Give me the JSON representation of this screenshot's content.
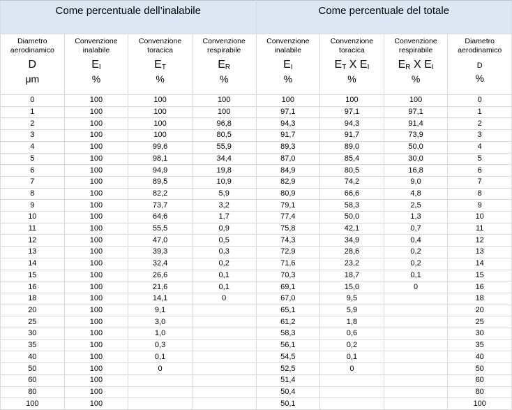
{
  "colors": {
    "band_background": "#dce7f3",
    "grid_line": "#d9d9d9",
    "outer_border": "#bcc2c9",
    "text": "#000000"
  },
  "table": {
    "section_headers": [
      "Come percentuale dell’inalabile",
      "Come percentuale del totale"
    ],
    "columns": [
      {
        "name": "Diametro aerodinamico",
        "symbol": "D",
        "symbol_size": "large",
        "unit": "μm"
      },
      {
        "name": "Convenzione inalabile",
        "symbol": "E_I",
        "symbol_size": "large",
        "unit": "%"
      },
      {
        "name": "Convenzione toracica",
        "symbol": "E_T",
        "symbol_size": "large",
        "unit": "%"
      },
      {
        "name": "Convenzione respirabile",
        "symbol": "E_R",
        "symbol_size": "large",
        "unit": "%"
      },
      {
        "name": "Convenzione inalabile",
        "symbol": "E_I",
        "symbol_size": "large",
        "unit": "%"
      },
      {
        "name": "Convenzione toracica",
        "symbol": "E_T X E_I",
        "symbol_size": "large",
        "unit": "%"
      },
      {
        "name": "Convenzione respirabile",
        "symbol": "E_R X E_I",
        "symbol_size": "large",
        "unit": "%"
      },
      {
        "name": "Diametro aerodinamico",
        "symbol": "D",
        "symbol_size": "small",
        "unit": "%"
      }
    ],
    "rows": [
      [
        "0",
        "100",
        "100",
        "100",
        "100",
        "100",
        "100",
        "0"
      ],
      [
        "1",
        "100",
        "100",
        "100",
        "97,1",
        "97,1",
        "97,1",
        "1"
      ],
      [
        "2",
        "100",
        "100",
        "96,8",
        "94,3",
        "94,3",
        "91,4",
        "2"
      ],
      [
        "3",
        "100",
        "100",
        "80,5",
        "91,7",
        "91,7",
        "73,9",
        "3"
      ],
      [
        "4",
        "100",
        "99,6",
        "55,9",
        "89,3",
        "89,0",
        "50,0",
        "4"
      ],
      [
        "5",
        "100",
        "98,1",
        "34,4",
        "87,0",
        "85,4",
        "30,0",
        "5"
      ],
      [
        "6",
        "100",
        "94,9",
        "19,8",
        "84,9",
        "80,5",
        "16,8",
        "6"
      ],
      [
        "7",
        "100",
        "89,5",
        "10,9",
        "82,9",
        "74,2",
        "9,0",
        "7"
      ],
      [
        "8",
        "100",
        "82,2",
        "5,9",
        "80,9",
        "66,6",
        "4,8",
        "8"
      ],
      [
        "9",
        "100",
        "73,7",
        "3,2",
        "79,1",
        "58,3",
        "2,5",
        "9"
      ],
      [
        "10",
        "100",
        "64,6",
        "1,7",
        "77,4",
        "50,0",
        "1,3",
        "10"
      ],
      [
        "11",
        "100",
        "55,5",
        "0,9",
        "75,8",
        "42,1",
        "0,7",
        "11"
      ],
      [
        "12",
        "100",
        "47,0",
        "0,5",
        "74,3",
        "34,9",
        "0,4",
        "12"
      ],
      [
        "13",
        "100",
        "39,3",
        "0,3",
        "72,9",
        "28,6",
        "0,2",
        "13"
      ],
      [
        "14",
        "100",
        "32,4",
        "0,2",
        "71,6",
        "23,2",
        "0,2",
        "14"
      ],
      [
        "15",
        "100",
        "26,6",
        "0,1",
        "70,3",
        "18,7",
        "0,1",
        "15"
      ],
      [
        "16",
        "100",
        "21,6",
        "0,1",
        "69,1",
        "15,0",
        "0",
        "16"
      ],
      [
        "18",
        "100",
        "14,1",
        "0",
        "67,0",
        "9,5",
        "",
        "18"
      ],
      [
        "20",
        "100",
        "9,1",
        "",
        "65,1",
        "5,9",
        "",
        "20"
      ],
      [
        "25",
        "100",
        "3,0",
        "",
        "61,2",
        "1,8",
        "",
        "25"
      ],
      [
        "30",
        "100",
        "1,0",
        "",
        "58,3",
        "0,6",
        "",
        "30"
      ],
      [
        "35",
        "100",
        "0,3",
        "",
        "56,1",
        "0,2",
        "",
        "35"
      ],
      [
        "40",
        "100",
        "0,1",
        "",
        "54,5",
        "0,1",
        "",
        "40"
      ],
      [
        "50",
        "100",
        "0",
        "",
        "52,5",
        "0",
        "",
        "50"
      ],
      [
        "60",
        "100",
        "",
        "",
        "51,4",
        "",
        "",
        "60"
      ],
      [
        "80",
        "100",
        "",
        "",
        "50,4",
        "",
        "",
        "80"
      ],
      [
        "100",
        "100",
        "",
        "",
        "50,1",
        "",
        "",
        "100"
      ]
    ]
  }
}
